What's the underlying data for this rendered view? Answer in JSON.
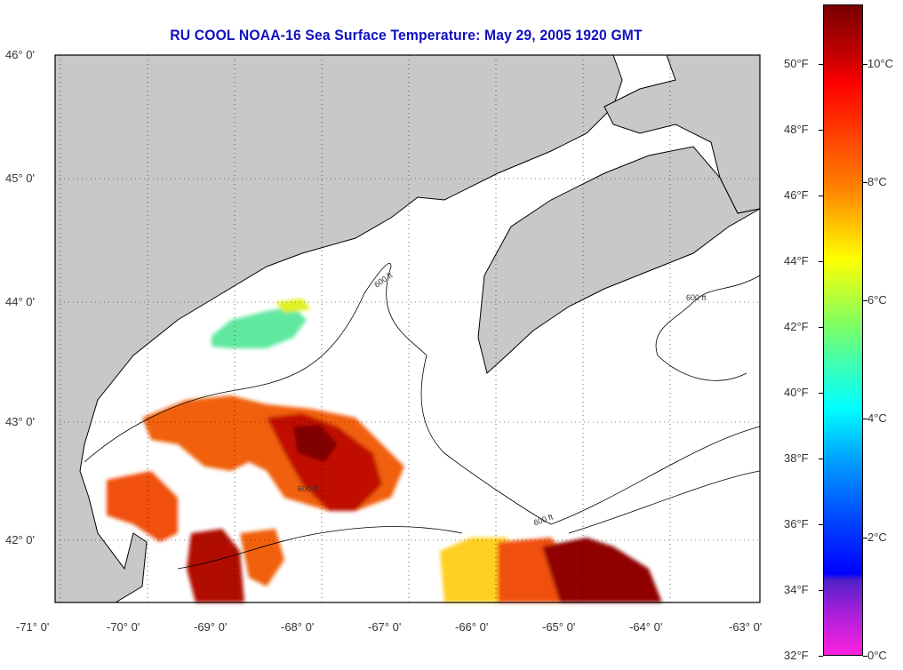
{
  "title": "RU COOL  NOAA-16  Sea Surface Temperature:  May 29, 2005 1920 GMT",
  "lat_labels": [
    "46° 0'",
    "45° 0'",
    "44° 0'",
    "43° 0'",
    "42° 0'"
  ],
  "lon_labels": [
    "-71° 0'",
    "-70° 0'",
    "-69° 0'",
    "-68° 0'",
    "-67° 0'",
    "-66° 0'",
    "-65° 0'",
    "-64° 0'",
    "-63° 0'"
  ],
  "contour_label": "600 ft",
  "colorbar": {
    "fahrenheit": [
      "50°F",
      "48°F",
      "46°F",
      "44°F",
      "42°F",
      "40°F",
      "38°F",
      "36°F",
      "34°F",
      "32°F"
    ],
    "celsius": [
      "10°C",
      "8°C",
      "6°C",
      "4°C",
      "2°C",
      "0°C"
    ]
  },
  "colors": {
    "land": "#c8c8c8",
    "title": "#1010c0",
    "ocean_nodata": "#ffffff"
  }
}
